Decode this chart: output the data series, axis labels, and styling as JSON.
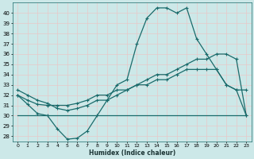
{
  "background_color": "#cce8e8",
  "grid_color": "#e8c8c8",
  "line_color": "#1a6b6b",
  "xlabel": "Humidex (Indice chaleur)",
  "xlim": [
    -0.5,
    23.5
  ],
  "ylim": [
    27.5,
    41.0
  ],
  "xticks": [
    0,
    1,
    2,
    3,
    4,
    5,
    6,
    7,
    8,
    9,
    10,
    11,
    12,
    13,
    14,
    15,
    16,
    17,
    18,
    19,
    20,
    21,
    22,
    23
  ],
  "yticks": [
    28,
    29,
    30,
    31,
    32,
    33,
    34,
    35,
    36,
    37,
    38,
    39,
    40
  ],
  "line1_x": [
    0,
    1,
    2,
    3,
    4,
    5,
    6,
    7,
    8,
    9,
    10,
    11,
    12,
    13,
    14,
    15,
    16,
    17,
    18,
    19,
    20,
    21,
    22,
    23
  ],
  "line1_y": [
    32,
    31.1,
    30.2,
    30.0,
    28.7,
    27.7,
    27.8,
    28.5,
    30.0,
    31.5,
    33.0,
    33.5,
    37.0,
    39.5,
    40.5,
    40.5,
    40.0,
    40.5,
    37.5,
    36.0,
    34.5,
    33.0,
    32.5,
    30.0
  ],
  "line2_x": [
    0,
    1,
    2,
    3,
    4,
    5,
    6,
    7,
    8,
    9,
    10,
    11,
    12,
    13,
    14,
    15,
    16,
    17,
    18,
    19,
    20,
    21,
    22,
    23
  ],
  "line2_y": [
    32.0,
    31.5,
    31.1,
    31.0,
    31.0,
    31.0,
    31.2,
    31.5,
    32.0,
    32.0,
    32.5,
    32.5,
    33.0,
    33.0,
    33.5,
    33.5,
    34.0,
    34.5,
    34.5,
    34.5,
    34.5,
    33.0,
    32.5,
    32.5
  ],
  "line3_x": [
    0,
    1,
    2,
    3,
    4,
    5,
    6,
    7,
    8,
    9,
    10,
    11,
    12,
    13,
    14,
    15,
    16,
    17,
    18,
    19,
    20,
    21,
    22,
    23
  ],
  "line3_y": [
    32.5,
    32.0,
    31.5,
    31.2,
    30.7,
    30.5,
    30.7,
    31.0,
    31.5,
    31.5,
    32.0,
    32.5,
    33.0,
    33.5,
    34.0,
    34.0,
    34.5,
    35.0,
    35.5,
    35.5,
    36.0,
    36.0,
    35.5,
    30.0
  ],
  "line4_x": [
    0,
    8,
    18,
    23
  ],
  "line4_y": [
    30.0,
    30.0,
    30.0,
    30.0
  ]
}
